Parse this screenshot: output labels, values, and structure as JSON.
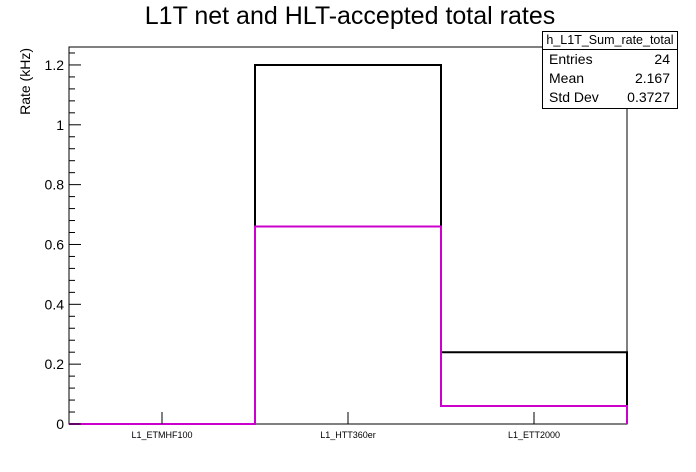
{
  "chart_data": {
    "type": "bar",
    "title": "L1T net and HLT-accepted total rates",
    "xlabel": "",
    "ylabel": "Rate (kHz)",
    "categories": [
      "L1_ETMHF100",
      "L1_HTT360er",
      "L1_ETT2000"
    ],
    "series": [
      {
        "values": [
          0.0,
          1.2,
          0.24
        ],
        "color": "#000000"
      },
      {
        "values": [
          0.0,
          0.66,
          0.06
        ],
        "color": "#cc00cc"
      }
    ],
    "ylim": [
      0,
      1.26
    ],
    "yticks": [
      0,
      0.2,
      0.4,
      0.6,
      0.8,
      1,
      1.2
    ],
    "ytick_labels": [
      "0",
      "0.2",
      "0.4",
      "0.6",
      "0.8",
      "1",
      "1.2"
    ],
    "histogram_style": "step",
    "grid": false
  },
  "stats": {
    "name": "h_L1T_Sum_rate_total",
    "rows": [
      {
        "label": "Entries",
        "value": "24"
      },
      {
        "label": "Mean",
        "value": "2.167"
      },
      {
        "label": "Std Dev",
        "value": "0.3727"
      }
    ]
  }
}
